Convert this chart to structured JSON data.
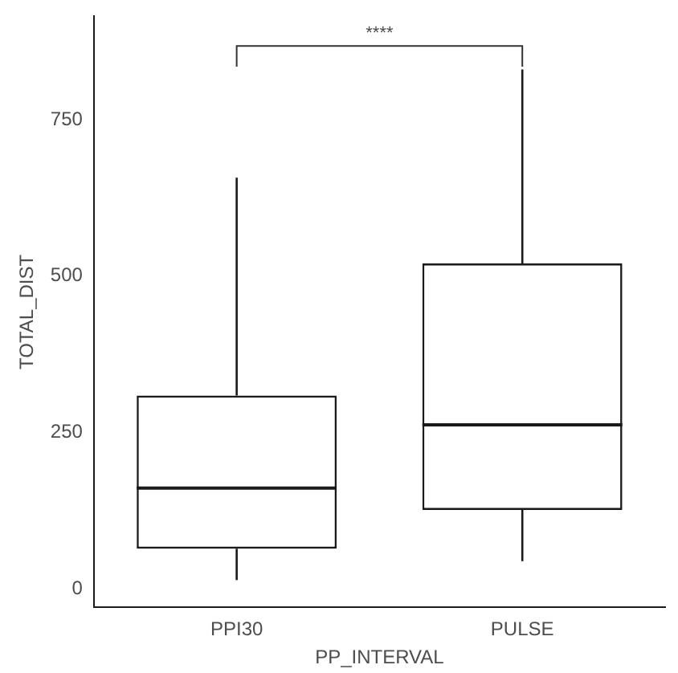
{
  "chart_data": {
    "type": "box",
    "xlabel": "PP_INTERVAL",
    "ylabel": "TOTAL_DIST",
    "categories": [
      "PPI30",
      "PULSE"
    ],
    "boxes": [
      {
        "low": 14,
        "q1": 64,
        "median": 161,
        "q3": 309,
        "high": 657
      },
      {
        "low": 44,
        "q1": 126,
        "median": 262,
        "q3": 520,
        "high": 830
      }
    ],
    "color": "#1a1a1a",
    "ylim": [
      -30,
      915
    ],
    "yticks": [
      0,
      250,
      500,
      750
    ],
    "grid": false,
    "legend": false,
    "annotations": [
      "****"
    ]
  }
}
